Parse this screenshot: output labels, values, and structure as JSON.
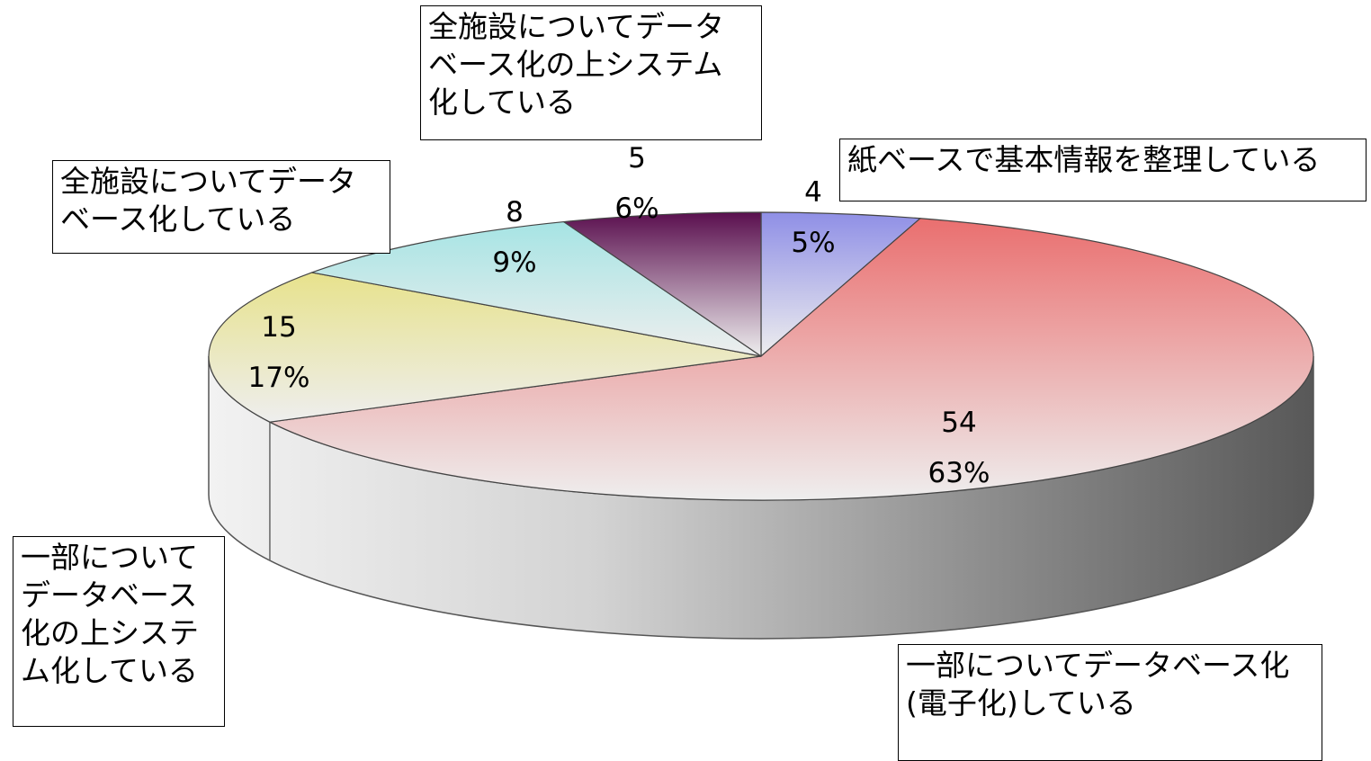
{
  "chart_data": {
    "type": "pie",
    "three_d": true,
    "start_angle_deg": 90,
    "direction": "clockwise",
    "slices": [
      {
        "name": "紙ベースで基本情報を整理している",
        "value": 4,
        "percent": "5%",
        "color": "#8f8fe6"
      },
      {
        "name": "一部についてデータベース化（電子化）している",
        "value": 54,
        "percent": "63%",
        "color": "#ea6f6f"
      },
      {
        "name": "一部についてデータベース化の上システム化している",
        "value": 15,
        "percent": "17%",
        "color": "#e7e28c"
      },
      {
        "name": "全施設についてデータベース化している",
        "value": 8,
        "percent": "9%",
        "color": "#a6e4e4"
      },
      {
        "name": "全施設についてデータベース化の上システム化している",
        "value": 5,
        "percent": "6%",
        "color": "#5a0f4e"
      }
    ],
    "callouts": [
      {
        "slice": 0,
        "text": "紙ベースで基本情報を整理している"
      },
      {
        "slice": 1,
        "text": "一部についてデータベース化\n(電子化)している"
      },
      {
        "slice": 2,
        "text": "一部について\nデータベース\n化の上システ\nム化している"
      },
      {
        "slice": 3,
        "text": "全施設についてデータ\nベース化している"
      },
      {
        "slice": 4,
        "text": "全施設についてデータ\nベース化の上システム\n化している"
      }
    ]
  }
}
